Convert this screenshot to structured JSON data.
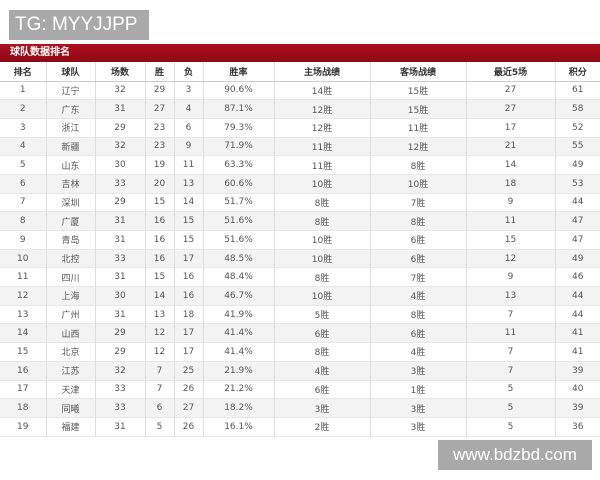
{
  "watermarks": {
    "top": "TG: MYYJJPP",
    "bottom": "www.bdzbd.com"
  },
  "title": "球队数据排名",
  "columns": [
    "排名",
    "球队",
    "场数",
    "胜",
    "负",
    "胜率",
    "主场战绩",
    "客场战绩",
    "最近5场",
    "积分"
  ],
  "rows": [
    [
      "1",
      "辽宁",
      "32",
      "29",
      "3",
      "90.6%",
      "14胜",
      "15胜",
      "27",
      "61"
    ],
    [
      "2",
      "广东",
      "31",
      "27",
      "4",
      "87.1%",
      "12胜",
      "15胜",
      "27",
      "58"
    ],
    [
      "3",
      "浙江",
      "29",
      "23",
      "6",
      "79.3%",
      "12胜",
      "11胜",
      "17",
      "52"
    ],
    [
      "4",
      "新疆",
      "32",
      "23",
      "9",
      "71.9%",
      "11胜",
      "12胜",
      "21",
      "55"
    ],
    [
      "5",
      "山东",
      "30",
      "19",
      "11",
      "63.3%",
      "11胜",
      "8胜",
      "14",
      "49"
    ],
    [
      "6",
      "吉林",
      "33",
      "20",
      "13",
      "60.6%",
      "10胜",
      "10胜",
      "18",
      "53"
    ],
    [
      "7",
      "深圳",
      "29",
      "15",
      "14",
      "51.7%",
      "8胜",
      "7胜",
      "9",
      "44"
    ],
    [
      "8",
      "广厦",
      "31",
      "16",
      "15",
      "51.6%",
      "8胜",
      "8胜",
      "11",
      "47"
    ],
    [
      "9",
      "青岛",
      "31",
      "16",
      "15",
      "51.6%",
      "10胜",
      "6胜",
      "15",
      "47"
    ],
    [
      "10",
      "北控",
      "33",
      "16",
      "17",
      "48.5%",
      "10胜",
      "6胜",
      "12",
      "49"
    ],
    [
      "11",
      "四川",
      "31",
      "15",
      "16",
      "48.4%",
      "8胜",
      "7胜",
      "9",
      "46"
    ],
    [
      "12",
      "上海",
      "30",
      "14",
      "16",
      "46.7%",
      "10胜",
      "4胜",
      "13",
      "44"
    ],
    [
      "13",
      "广州",
      "31",
      "13",
      "18",
      "41.9%",
      "5胜",
      "8胜",
      "7",
      "44"
    ],
    [
      "14",
      "山西",
      "29",
      "12",
      "17",
      "41.4%",
      "6胜",
      "6胜",
      "11",
      "41"
    ],
    [
      "15",
      "北京",
      "29",
      "12",
      "17",
      "41.4%",
      "8胜",
      "4胜",
      "7",
      "41"
    ],
    [
      "16",
      "江苏",
      "32",
      "7",
      "25",
      "21.9%",
      "4胜",
      "3胜",
      "7",
      "39"
    ],
    [
      "17",
      "天津",
      "33",
      "7",
      "26",
      "21.2%",
      "6胜",
      "1胜",
      "5",
      "40"
    ],
    [
      "18",
      "同曦",
      "33",
      "6",
      "27",
      "18.2%",
      "3胜",
      "3胜",
      "5",
      "39"
    ],
    [
      "19",
      "福建",
      "31",
      "5",
      "26",
      "16.1%",
      "2胜",
      "3胜",
      "5",
      "36"
    ]
  ]
}
